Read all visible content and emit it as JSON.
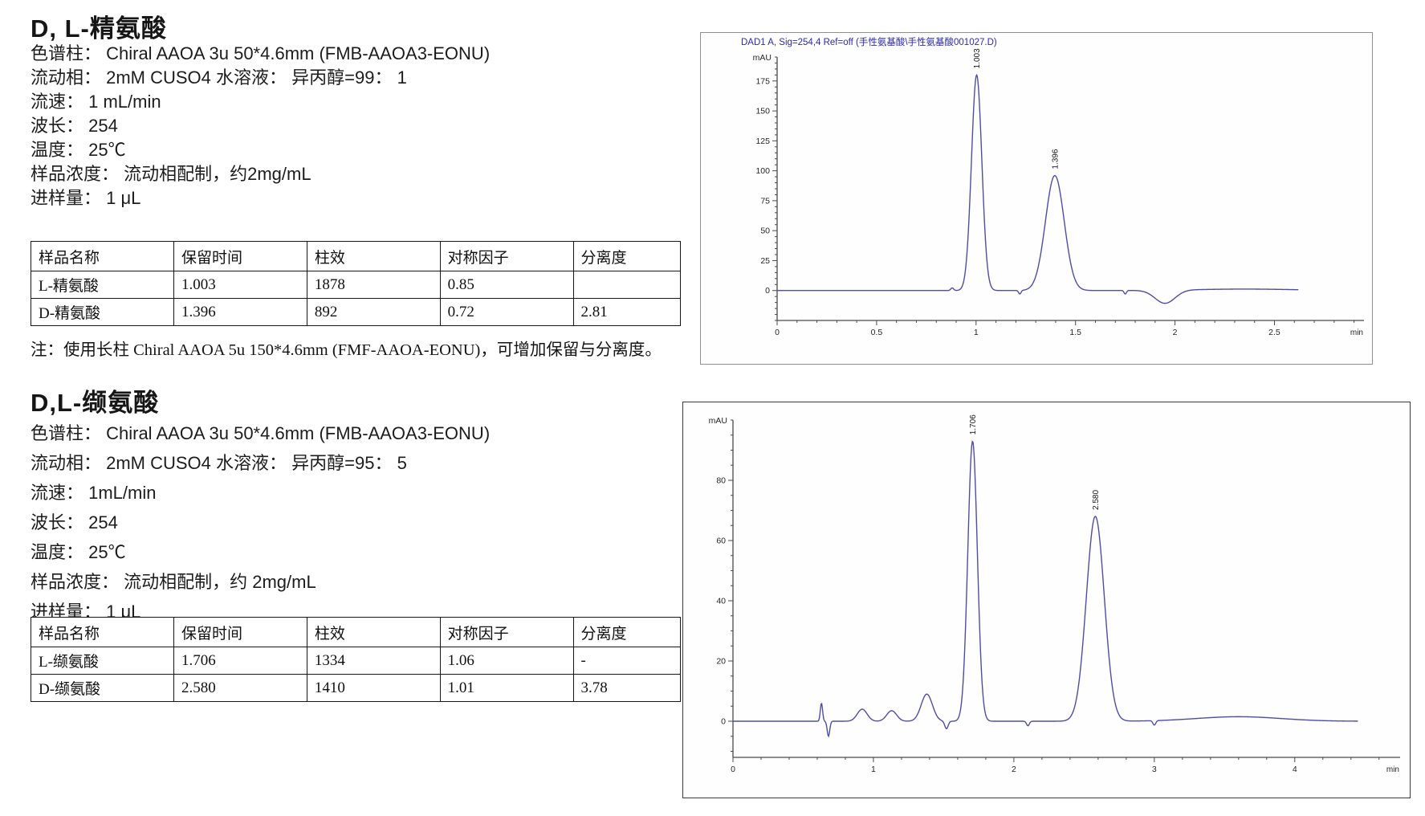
{
  "sections": [
    {
      "title": "D, L-精氨酸",
      "params": [
        "色谱柱： Chiral AAOA 3u 50*4.6mm (FMB-AAOA3-EONU)",
        "流动相： 2mM CUSO4 水溶液： 异丙醇=99： 1",
        "流速： 1 mL/min",
        "波长： 254",
        "温度： 25℃",
        "样品浓度： 流动相配制，约2mg/mL",
        "进样量： 1 μL"
      ],
      "table": {
        "headers": [
          "样品名称",
          "保留时间",
          "柱效",
          "对称因子",
          "分离度"
        ],
        "rows": [
          [
            "L-精氨酸",
            "1.003",
            "1878",
            "0.85",
            ""
          ],
          [
            "D-精氨酸",
            "1.396",
            "892",
            "0.72",
            "2.81"
          ]
        ]
      },
      "note": "注：使用长柱 Chiral AAOA 5u 150*4.6mm (FMF-AAOA-EONU)，可增加保留与分离度。"
    },
    {
      "title": "D,L-缬氨酸",
      "params": [
        "色谱柱： Chiral AAOA 3u 50*4.6mm (FMB-AAOA3-EONU)",
        "流动相： 2mM CUSO4 水溶液： 异丙醇=95： 5",
        "流速： 1mL/min",
        "波长： 254",
        "温度： 25℃",
        "样品浓度： 流动相配制，约 2mg/mL",
        "进样量： 1 μL"
      ],
      "table": {
        "headers": [
          "样品名称",
          "保留时间",
          "柱效",
          "对称因子",
          "分离度"
        ],
        "rows": [
          [
            "L-缬氨酸",
            "1.706",
            "1334",
            "1.06",
            "-"
          ],
          [
            "D-缬氨酸",
            "2.580",
            "1410",
            "1.01",
            "3.78"
          ]
        ]
      }
    }
  ],
  "chart_data": [
    {
      "type": "line",
      "analyte": "D,L-精氨酸",
      "title": "DAD1 A, Sig=254,4 Ref=off (手性氨基酸\\手性氨基酸001027.D)",
      "title_color": "#2a2ab4",
      "line_color": "#4d4da8",
      "ylabel": "mAU",
      "xlabel": "min",
      "xlim": [
        0,
        2.95
      ],
      "ylim": [
        -25,
        195
      ],
      "xticks": [
        0,
        0.5,
        1,
        1.5,
        2,
        2.5
      ],
      "yticks": [
        0,
        25,
        50,
        75,
        100,
        125,
        150,
        175
      ],
      "xtick_minor": 0.1,
      "ytick_minor": 5,
      "x_start": 0,
      "x_end": 2.62,
      "grid": false,
      "peaks": [
        {
          "rt": 1.003,
          "height": 180,
          "sigma": 0.026,
          "label": "1.003"
        },
        {
          "rt": 1.396,
          "height": 96,
          "sigma": 0.047,
          "label": "1.396"
        }
      ],
      "baseline_features": [
        {
          "rt": 0.88,
          "height": 2.2,
          "sigma": 0.007
        },
        {
          "rt": 1.22,
          "height": -3.0,
          "sigma": 0.006
        },
        {
          "rt": 1.75,
          "height": -3.0,
          "sigma": 0.006
        },
        {
          "rt": 1.95,
          "height": -11,
          "sigma": 0.05
        },
        {
          "rt": 2.35,
          "height": 1.2,
          "sigma": 0.25
        }
      ]
    },
    {
      "type": "line",
      "analyte": "D,L-缬氨酸",
      "title": "",
      "title_color": "#2a2ab4",
      "line_color": "#4d4da8",
      "ylabel": "mAU",
      "xlabel": "min",
      "xlim": [
        0,
        4.75
      ],
      "ylim": [
        -12,
        100
      ],
      "xticks": [
        0,
        1,
        2,
        3,
        4
      ],
      "yticks": [
        0,
        20,
        40,
        60,
        80
      ],
      "xtick_minor": 0.2,
      "ytick_minor": 5,
      "x_start": 0,
      "x_end": 4.45,
      "grid": false,
      "peaks": [
        {
          "rt": 1.706,
          "height": 93,
          "sigma": 0.034,
          "label": "1.706"
        },
        {
          "rt": 2.58,
          "height": 68,
          "sigma": 0.064,
          "label": "2.580"
        }
      ],
      "baseline_features": [
        {
          "rt": 0.63,
          "height": 6,
          "sigma": 0.008
        },
        {
          "rt": 0.68,
          "height": -5,
          "sigma": 0.009
        },
        {
          "rt": 0.92,
          "height": 4,
          "sigma": 0.035
        },
        {
          "rt": 1.13,
          "height": 3.5,
          "sigma": 0.035
        },
        {
          "rt": 1.38,
          "height": 9,
          "sigma": 0.04
        },
        {
          "rt": 1.52,
          "height": -2.5,
          "sigma": 0.012
        },
        {
          "rt": 2.1,
          "height": -1.5,
          "sigma": 0.01
        },
        {
          "rt": 3.0,
          "height": -1.5,
          "sigma": 0.01
        },
        {
          "rt": 3.6,
          "height": 1.5,
          "sigma": 0.3
        }
      ]
    }
  ]
}
